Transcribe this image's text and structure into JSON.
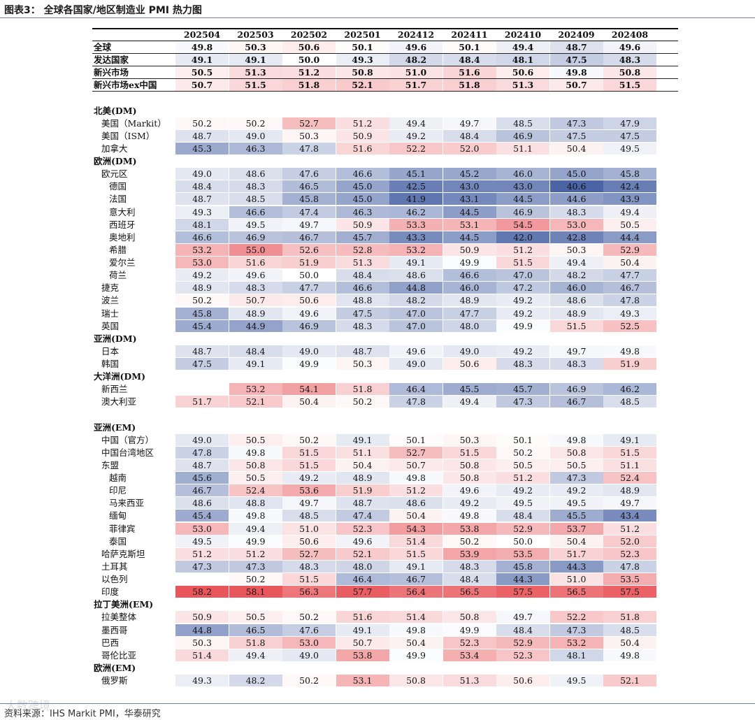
{
  "title": "图表3：   全球各国家/地区制造业 PMI 热力图",
  "source": "资料来源：IHS Markit PMI，华泰研究",
  "watermark": "大数跨境",
  "colors": {
    "high": "#e8555a",
    "low": "#4a64a6",
    "neutral": "#ffffff"
  },
  "columns": [
    "202504",
    "202503",
    "202502",
    "202501",
    "202412",
    "202411",
    "202410",
    "202409",
    "202408"
  ],
  "rows": [
    {
      "label": "全球",
      "type": "agg",
      "values": [
        49.8,
        50.3,
        50.6,
        50.1,
        49.6,
        50.1,
        49.4,
        48.7,
        49.6
      ]
    },
    {
      "label": "发达国家",
      "type": "agg",
      "values": [
        49.1,
        49.1,
        50.0,
        49.3,
        48.2,
        48.4,
        48.1,
        47.5,
        48.3
      ]
    },
    {
      "label": "新兴市场",
      "type": "agg",
      "values": [
        50.5,
        51.3,
        51.2,
        50.8,
        51.0,
        51.6,
        50.6,
        49.8,
        50.8
      ]
    },
    {
      "label": "新兴市场ex中国",
      "type": "agg",
      "values": [
        50.7,
        51.5,
        51.8,
        52.1,
        51.7,
        51.8,
        51.3,
        50.7,
        51.5
      ]
    },
    {
      "label": "",
      "type": "gap"
    },
    {
      "label": "北美(DM)",
      "type": "sec"
    },
    {
      "label": "美国（Markit）",
      "type": "data",
      "indent": 1,
      "values": [
        50.2,
        50.2,
        52.7,
        51.2,
        49.4,
        49.7,
        48.5,
        47.3,
        47.9
      ]
    },
    {
      "label": "美国（ISM）",
      "type": "data",
      "indent": 1,
      "values": [
        48.7,
        49.0,
        50.3,
        50.9,
        49.2,
        48.4,
        46.9,
        47.5,
        47.5
      ]
    },
    {
      "label": "加拿大",
      "type": "data",
      "indent": 1,
      "values": [
        45.3,
        46.3,
        47.8,
        51.6,
        52.2,
        52.0,
        51.1,
        50.4,
        49.5
      ]
    },
    {
      "label": "欧洲(DM)",
      "type": "sec"
    },
    {
      "label": "欧元区",
      "type": "data",
      "indent": 1,
      "values": [
        49.0,
        48.6,
        47.6,
        46.6,
        45.1,
        45.2,
        46.0,
        45.0,
        45.8
      ]
    },
    {
      "label": "德国",
      "type": "data",
      "indent": 2,
      "values": [
        48.4,
        48.3,
        46.5,
        45.0,
        42.5,
        43.0,
        43.0,
        40.6,
        42.4
      ]
    },
    {
      "label": "法国",
      "type": "data",
      "indent": 2,
      "values": [
        48.7,
        48.5,
        45.8,
        45.0,
        41.9,
        43.1,
        44.5,
        44.6,
        43.9
      ]
    },
    {
      "label": "意大利",
      "type": "data",
      "indent": 2,
      "values": [
        49.3,
        46.6,
        47.4,
        46.3,
        46.2,
        44.5,
        46.9,
        48.3,
        49.4
      ]
    },
    {
      "label": "西班牙",
      "type": "data",
      "indent": 2,
      "values": [
        48.1,
        49.5,
        49.7,
        50.9,
        53.3,
        53.1,
        54.5,
        53.0,
        50.5
      ]
    },
    {
      "label": "奥地利",
      "type": "data",
      "indent": 2,
      "values": [
        46.6,
        46.9,
        46.7,
        45.7,
        43.3,
        44.5,
        42.0,
        42.8,
        44.4
      ]
    },
    {
      "label": "希腊",
      "type": "data",
      "indent": 2,
      "values": [
        53.2,
        55.0,
        52.6,
        52.8,
        53.2,
        50.9,
        51.2,
        50.3,
        52.9
      ]
    },
    {
      "label": "爱尔兰",
      "type": "data",
      "indent": 2,
      "values": [
        53.0,
        51.6,
        51.9,
        51.3,
        49.1,
        49.9,
        51.5,
        49.4,
        50.4
      ]
    },
    {
      "label": "荷兰",
      "type": "data",
      "indent": 2,
      "values": [
        49.2,
        49.6,
        50.0,
        48.4,
        48.6,
        46.6,
        47.0,
        48.2,
        47.7
      ]
    },
    {
      "label": "捷克",
      "type": "data",
      "indent": 1,
      "values": [
        48.9,
        48.3,
        47.7,
        46.6,
        44.8,
        46.0,
        47.2,
        46.0,
        46.7
      ]
    },
    {
      "label": "波兰",
      "type": "data",
      "indent": 1,
      "values": [
        50.2,
        50.7,
        50.6,
        48.8,
        48.2,
        48.9,
        49.2,
        48.6,
        47.8
      ]
    },
    {
      "label": "瑞士",
      "type": "data",
      "indent": 1,
      "values": [
        45.8,
        48.9,
        49.6,
        47.5,
        47.0,
        47.7,
        49.2,
        48.9,
        49.3
      ]
    },
    {
      "label": "英国",
      "type": "data",
      "indent": 1,
      "values": [
        45.4,
        44.9,
        46.9,
        48.3,
        47.0,
        48.0,
        49.9,
        51.5,
        52.5
      ]
    },
    {
      "label": "亚洲(DM)",
      "type": "sec"
    },
    {
      "label": "日本",
      "type": "data",
      "indent": 1,
      "values": [
        48.7,
        48.4,
        49.0,
        48.7,
        49.6,
        49.0,
        49.2,
        49.7,
        49.8
      ]
    },
    {
      "label": "韩国",
      "type": "data",
      "indent": 1,
      "values": [
        47.5,
        49.1,
        49.9,
        50.3,
        49.0,
        50.6,
        48.3,
        48.3,
        51.9
      ]
    },
    {
      "label": "大洋洲(DM)",
      "type": "sec"
    },
    {
      "label": "新西兰",
      "type": "data",
      "indent": 1,
      "values": [
        null,
        53.2,
        54.1,
        51.8,
        46.4,
        45.5,
        45.7,
        46.9,
        46.2
      ]
    },
    {
      "label": "澳大利亚",
      "type": "data",
      "indent": 1,
      "values": [
        51.7,
        52.1,
        50.4,
        50.2,
        47.8,
        49.4,
        47.3,
        46.7,
        48.5
      ]
    },
    {
      "label": "",
      "type": "gap"
    },
    {
      "label": "亚洲(EM)",
      "type": "sec"
    },
    {
      "label": "中国（官方）",
      "type": "data",
      "indent": 1,
      "values": [
        49.0,
        50.5,
        50.2,
        49.1,
        50.1,
        50.3,
        50.1,
        49.8,
        49.1
      ]
    },
    {
      "label": "中国台湾地区",
      "type": "data",
      "indent": 1,
      "values": [
        47.8,
        49.8,
        51.5,
        51.1,
        52.7,
        51.5,
        50.2,
        50.8,
        51.5
      ]
    },
    {
      "label": "东盟",
      "type": "data",
      "indent": 1,
      "values": [
        48.7,
        50.8,
        51.5,
        50.4,
        50.7,
        50.8,
        50.5,
        50.5,
        51.1
      ]
    },
    {
      "label": "越南",
      "type": "data",
      "indent": 2,
      "values": [
        45.6,
        50.5,
        49.2,
        48.9,
        49.8,
        50.8,
        51.2,
        47.3,
        52.4
      ]
    },
    {
      "label": "印尼",
      "type": "data",
      "indent": 2,
      "values": [
        46.7,
        52.4,
        53.6,
        51.9,
        51.2,
        49.6,
        49.2,
        49.2,
        48.9
      ]
    },
    {
      "label": "马来西亚",
      "type": "data",
      "indent": 2,
      "values": [
        48.6,
        48.8,
        49.7,
        48.7,
        48.6,
        49.2,
        49.5,
        49.5,
        49.7
      ]
    },
    {
      "label": "缅甸",
      "type": "data",
      "indent": 2,
      "values": [
        45.4,
        49.8,
        48.5,
        47.4,
        50.4,
        49.8,
        48.4,
        45.5,
        43.4
      ]
    },
    {
      "label": "菲律宾",
      "type": "data",
      "indent": 2,
      "values": [
        53.0,
        49.4,
        51.0,
        52.3,
        54.3,
        53.8,
        52.9,
        53.7,
        51.2
      ]
    },
    {
      "label": "泰国",
      "type": "data",
      "indent": 2,
      "values": [
        49.5,
        49.9,
        50.6,
        49.6,
        51.4,
        50.2,
        50.0,
        50.4,
        52.0
      ]
    },
    {
      "label": "哈萨克斯坦",
      "type": "data",
      "indent": 1,
      "values": [
        51.2,
        51.2,
        52.7,
        52.1,
        51.5,
        53.9,
        53.5,
        51.7,
        52.3
      ]
    },
    {
      "label": "土耳其",
      "type": "data",
      "indent": 1,
      "values": [
        47.3,
        47.3,
        48.3,
        48.0,
        49.1,
        48.3,
        45.8,
        44.3,
        47.8
      ]
    },
    {
      "label": "以色列",
      "type": "data",
      "indent": 1,
      "values": [
        null,
        50.2,
        51.5,
        46.4,
        46.7,
        48.4,
        44.3,
        51.0,
        53.5
      ]
    },
    {
      "label": "印度",
      "type": "data",
      "indent": 1,
      "values": [
        58.2,
        58.1,
        56.3,
        57.7,
        56.4,
        56.5,
        57.5,
        56.5,
        57.5
      ]
    },
    {
      "label": "拉丁美洲(EM)",
      "type": "sec"
    },
    {
      "label": "拉美整体",
      "type": "data",
      "indent": 1,
      "values": [
        50.9,
        50.5,
        50.2,
        51.6,
        51.4,
        50.8,
        49.7,
        52.2,
        51.8
      ]
    },
    {
      "label": "墨西哥",
      "type": "data",
      "indent": 1,
      "values": [
        44.8,
        46.5,
        47.6,
        49.1,
        49.8,
        49.9,
        48.4,
        47.3,
        48.5
      ]
    },
    {
      "label": "巴西",
      "type": "data",
      "indent": 1,
      "values": [
        50.3,
        51.8,
        53.0,
        50.7,
        50.4,
        52.3,
        52.9,
        53.2,
        50.4
      ]
    },
    {
      "label": "哥伦比亚",
      "type": "data",
      "indent": 1,
      "values": [
        51.4,
        49.4,
        49.0,
        53.8,
        49.9,
        53.4,
        52.3,
        48.1,
        49.8
      ]
    },
    {
      "label": "欧洲(EM)",
      "type": "sec"
    },
    {
      "label": "俄罗斯",
      "type": "data",
      "indent": 1,
      "values": [
        49.3,
        48.2,
        50.2,
        53.1,
        50.8,
        51.3,
        50.6,
        49.5,
        52.1
      ]
    }
  ]
}
